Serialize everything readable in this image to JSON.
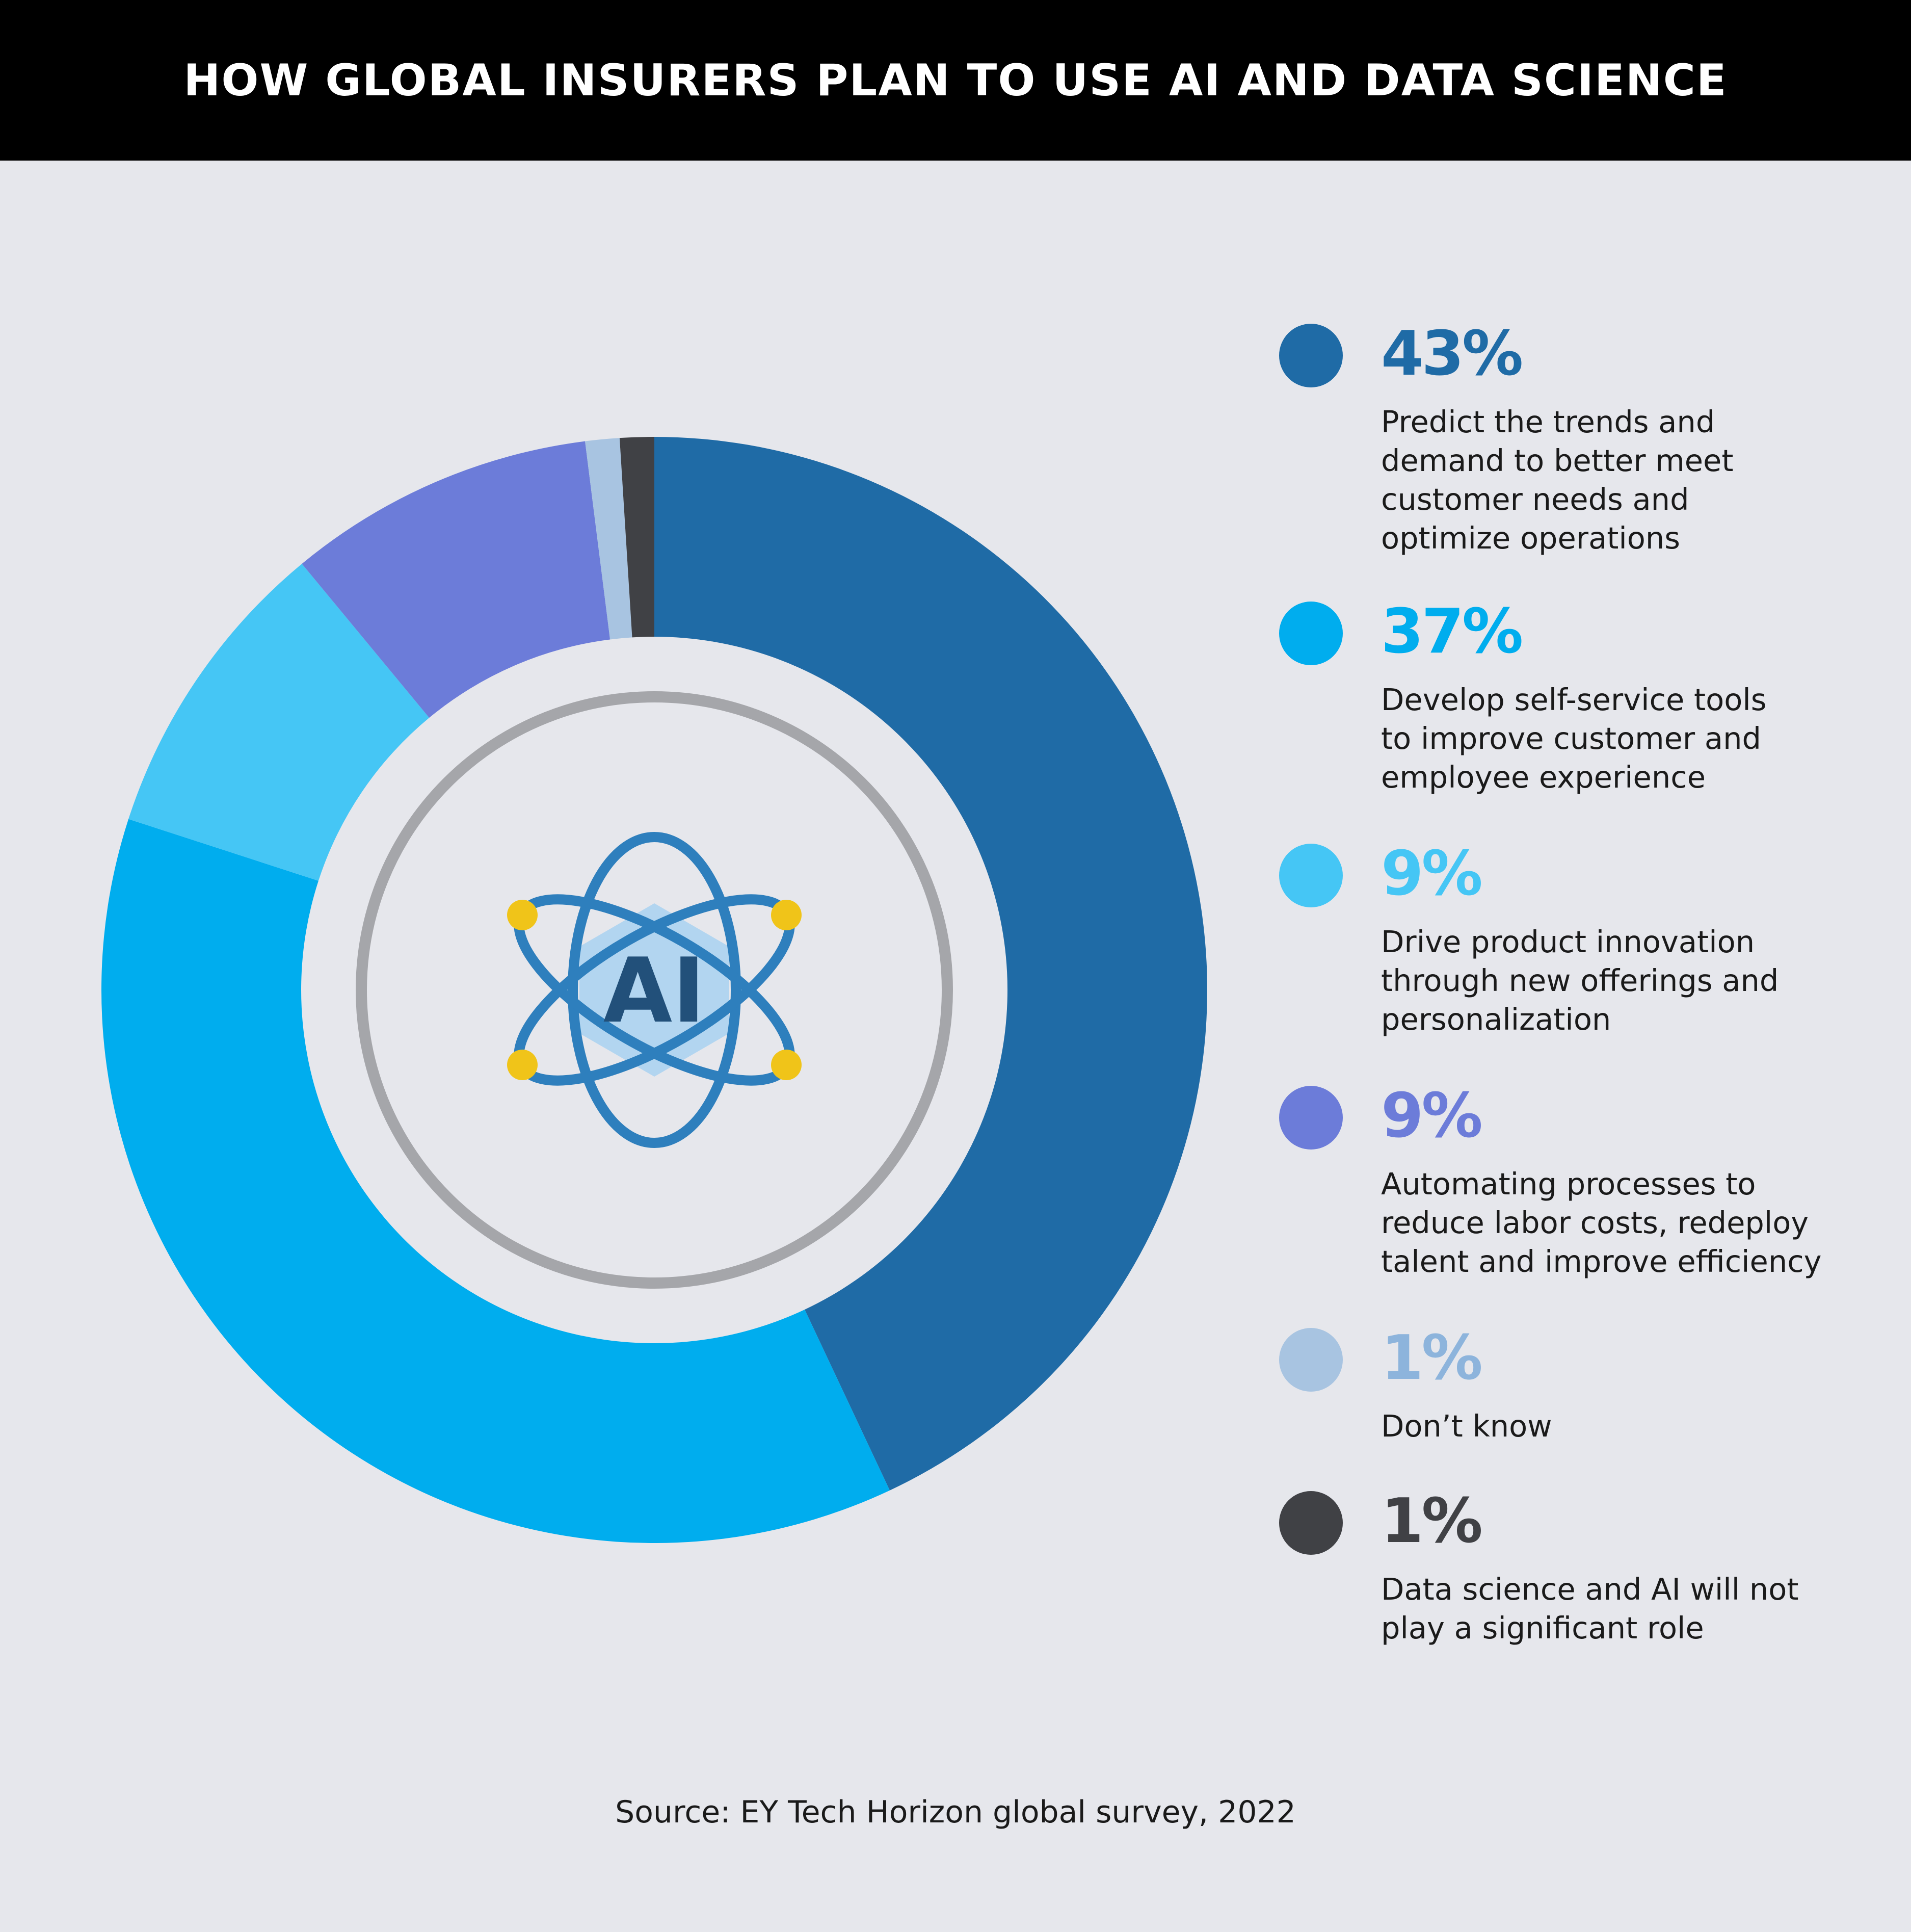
{
  "title": "HOW GLOBAL INSURERS PLAN TO USE AI AND DATA SCIENCE",
  "center_icon": {
    "name": "atom-ai-icon",
    "label": "AI"
  },
  "source": "Source: EY Tech Horizon global survey, 2022",
  "chart_data": {
    "type": "pie",
    "variant": "donut",
    "title": "HOW GLOBAL INSURERS PLAN TO USE AI AND DATA SCIENCE",
    "legend_position": "right",
    "slices": [
      {
        "value": 43,
        "label": "43%",
        "description": "Predict the trends and demand to better meet customer needs and optimize operations",
        "description_lines": [
          "Predict the trends and",
          "demand to better meet",
          "customer needs and",
          "optimize operations"
        ],
        "color": "#1f6ba6"
      },
      {
        "value": 37,
        "label": "37%",
        "description": "Develop self-service tools to improve customer and employee experience",
        "description_lines": [
          "Develop self-service tools",
          "to improve customer and",
          "employee experience"
        ],
        "color": "#00adee"
      },
      {
        "value": 9,
        "label": "9%",
        "description": "Drive product innovation through new offerings and personalization",
        "description_lines": [
          "Drive product innovation",
          "through new offerings and",
          "personalization"
        ],
        "color": "#45c6f5"
      },
      {
        "value": 9,
        "label": "9%",
        "description": "Automating processes to reduce labor costs, redeploy talent and improve efficiency",
        "description_lines": [
          "Automating processes to",
          "reduce labor costs, redeploy",
          "talent and improve efficiency"
        ],
        "color": "#6c7cd9"
      },
      {
        "value": 1,
        "label": "1%",
        "description": "Don’t know",
        "description_lines": [
          "Don’t know"
        ],
        "color": "#a8c4e1"
      },
      {
        "value": 1,
        "label": "1%",
        "description": "Data science and AI will not play a significant role",
        "description_lines": [
          "Data science and AI will not",
          "play a significant role"
        ],
        "color": "#404145"
      }
    ]
  },
  "colors": {
    "background": "#e6e7ec",
    "header": "#000000",
    "inner_ring": "#a5a6aa",
    "icon_blue": "#2e7fbd",
    "icon_fill": "#b2d5f0",
    "icon_text": "#22507a",
    "icon_dots": "#f0c419",
    "pct_text": [
      "#1f6ba6",
      "#00adee",
      "#45c6f5",
      "#6c7cd9",
      "#8db4dc",
      "#404145"
    ]
  }
}
